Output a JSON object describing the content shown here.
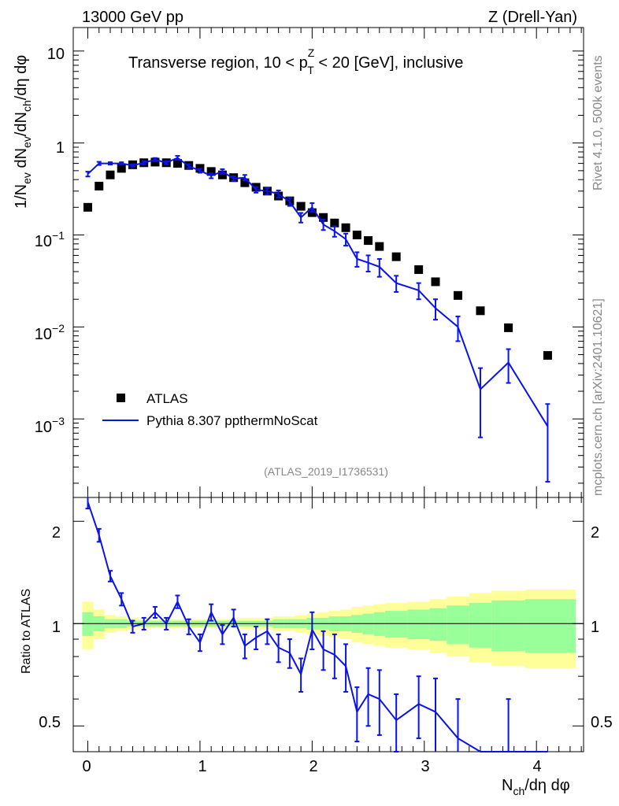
{
  "header": {
    "left": "13000 GeV pp",
    "right": "Z (Drell-Yan)",
    "region": "Transverse region, 10 < p",
    "region_sup": "Z",
    "region_sub": "T",
    "region_tail": " < 20 [GeV], inclusive",
    "analysis": "(ATLAS_2019_I1736531)",
    "side_rivet": "Rivet 4.1.0,  500k events",
    "side_mcplots": "mcplots.cern.ch [arXiv:2401.10621]"
  },
  "axes": {
    "top_ylabel": "1/N_ev dN_ev/dN_ch/dη dφ",
    "bottom_ylabel": "Ratio to ATLAS",
    "xlabel": "N_ch/dη dφ",
    "x_ticks": [
      "0",
      "1",
      "2",
      "3",
      "4"
    ],
    "top_y_ticks": [
      "10",
      "1",
      "10^-1",
      "10^-2",
      "10^-3"
    ],
    "ratio_ticks": [
      "2",
      "1",
      "0.5"
    ]
  },
  "legend": {
    "data": "ATLAS",
    "mc": "Pythia 8.307 ppthermNoScat"
  },
  "colors": {
    "data": "#000000",
    "mc": "#0a14e6",
    "band_inner": "#99ff99",
    "band_outer": "#ffff99"
  },
  "chart_data": {
    "type": "scatter",
    "x_range": [
      -0.13,
      4.42
    ],
    "y_range_log": [
      0.00014,
      18
    ],
    "ratio_range_log": [
      0.42,
      2.35
    ],
    "x": [
      0,
      0.1,
      0.2,
      0.3,
      0.4,
      0.5,
      0.6,
      0.7,
      0.8,
      0.9,
      1.0,
      1.1,
      1.2,
      1.3,
      1.4,
      1.5,
      1.6,
      1.7,
      1.8,
      1.9,
      2.0,
      2.1,
      2.2,
      2.3,
      2.4,
      2.5,
      2.6,
      2.75,
      2.95,
      3.1,
      3.3,
      3.5,
      3.75,
      4.1
    ],
    "series": [
      {
        "name": "ATLAS",
        "values": [
          0.2,
          0.34,
          0.45,
          0.53,
          0.58,
          0.61,
          0.62,
          0.61,
          0.6,
          0.57,
          0.53,
          0.49,
          0.45,
          0.42,
          0.37,
          0.33,
          0.3,
          0.265,
          0.235,
          0.205,
          0.175,
          0.155,
          0.135,
          0.12,
          0.1,
          0.087,
          0.075,
          0.058,
          0.042,
          0.031,
          0.022,
          0.015,
          0.0098,
          0.0049
        ]
      },
      {
        "name": "Pythia 8.307 ppthermNoScat",
        "values": [
          0.46,
          0.6,
          0.6,
          0.6,
          0.57,
          0.61,
          0.66,
          0.61,
          0.69,
          0.56,
          0.5,
          0.44,
          0.49,
          0.41,
          0.42,
          0.31,
          0.3,
          0.28,
          0.23,
          0.155,
          0.2,
          0.13,
          0.11,
          0.09,
          0.055,
          0.05,
          0.045,
          0.03,
          0.025,
          0.016,
          0.01,
          0.0021,
          0.0041,
          0.00083
        ],
        "err_rel": [
          0.06,
          0.04,
          0.03,
          0.03,
          0.03,
          0.04,
          0.04,
          0.04,
          0.05,
          0.05,
          0.05,
          0.06,
          0.06,
          0.06,
          0.07,
          0.07,
          0.08,
          0.09,
          0.1,
          0.12,
          0.11,
          0.13,
          0.13,
          0.15,
          0.18,
          0.2,
          0.22,
          0.2,
          0.2,
          0.25,
          0.3,
          0.7,
          0.4,
          0.75
        ]
      }
    ],
    "ratio": {
      "values": [
        2.28,
        1.82,
        1.38,
        1.18,
        0.98,
        1.0,
        1.08,
        1.0,
        1.16,
        0.98,
        0.88,
        1.08,
        0.93,
        1.04,
        0.86,
        0.91,
        0.95,
        0.85,
        0.82,
        0.71,
        0.96,
        0.84,
        0.81,
        0.75,
        0.55,
        0.62,
        0.6,
        0.52,
        0.58,
        0.55,
        0.46,
        0.14,
        0.42,
        0.17
      ],
      "err": [
        0.1,
        0.08,
        0.05,
        0.05,
        0.04,
        0.04,
        0.04,
        0.04,
        0.05,
        0.05,
        0.05,
        0.06,
        0.06,
        0.06,
        0.07,
        0.07,
        0.08,
        0.08,
        0.08,
        0.08,
        0.12,
        0.11,
        0.12,
        0.12,
        0.1,
        0.12,
        0.13,
        0.1,
        0.12,
        0.14,
        0.14,
        0.1,
        0.18,
        0.1
      ],
      "band_edges": [
        -0.05,
        0.05,
        0.15,
        0.25,
        0.35,
        0.45,
        0.55,
        0.65,
        0.75,
        0.85,
        0.95,
        1.05,
        1.15,
        1.25,
        1.35,
        1.45,
        1.55,
        1.65,
        1.75,
        1.85,
        1.95,
        2.05,
        2.15,
        2.25,
        2.35,
        2.45,
        2.55,
        2.65,
        2.85,
        3.05,
        3.2,
        3.4,
        3.6,
        3.9,
        4.35
      ],
      "band_inner": [
        0.08,
        0.05,
        0.03,
        0.03,
        0.02,
        0.02,
        0.02,
        0.02,
        0.02,
        0.02,
        0.02,
        0.02,
        0.02,
        0.02,
        0.02,
        0.02,
        0.02,
        0.03,
        0.03,
        0.03,
        0.04,
        0.04,
        0.05,
        0.05,
        0.06,
        0.07,
        0.08,
        0.09,
        0.1,
        0.11,
        0.13,
        0.15,
        0.17,
        0.18
      ],
      "band_outer": [
        0.16,
        0.1,
        0.06,
        0.05,
        0.04,
        0.03,
        0.03,
        0.03,
        0.03,
        0.03,
        0.03,
        0.03,
        0.03,
        0.03,
        0.04,
        0.04,
        0.04,
        0.05,
        0.05,
        0.06,
        0.07,
        0.08,
        0.09,
        0.1,
        0.12,
        0.13,
        0.14,
        0.15,
        0.16,
        0.18,
        0.2,
        0.23,
        0.25,
        0.26
      ]
    }
  }
}
